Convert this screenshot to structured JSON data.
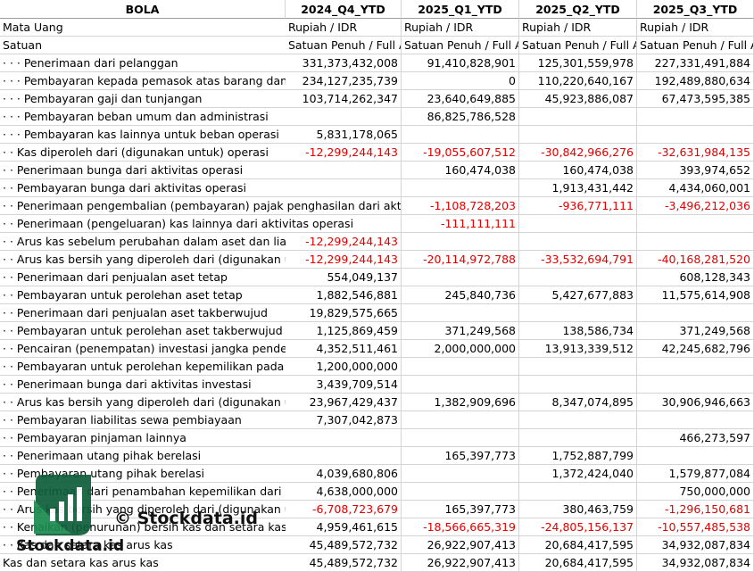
{
  "table": {
    "header": [
      "BOLA",
      "2024_Q4_YTD",
      "2025_Q1_YTD",
      "2025_Q2_YTD",
      "2025_Q3_YTD"
    ],
    "rows": [
      [
        "Mata Uang",
        "Rupiah / IDR",
        "Rupiah / IDR",
        "Rupiah / IDR",
        "Rupiah / IDR"
      ],
      [
        "Satuan",
        "Satuan Penuh / Full A",
        "Satuan Penuh / Full A",
        "Satuan Penuh / Full A",
        "Satuan Penuh / Full A"
      ],
      [
        "· · · Penerimaan dari pelanggan",
        "331,373,432,008",
        "91,410,828,901",
        "125,301,559,978",
        "227,331,491,884"
      ],
      [
        "· · · Pembayaran kepada pemasok atas barang dan ja",
        "234,127,235,739",
        "0",
        "110,220,640,167",
        "192,489,880,634"
      ],
      [
        "· · · Pembayaran gaji dan tunjangan",
        "103,714,262,347",
        "23,640,649,885",
        "45,923,886,087",
        "67,473,595,385"
      ],
      [
        "· · · Pembayaran beban umum dan administrasi",
        null,
        "86,825,786,528",
        null,
        null
      ],
      [
        "· · · Pembayaran kas lainnya untuk beban operasi",
        "5,831,178,065",
        null,
        null,
        null
      ],
      [
        "· · Kas diperoleh dari (digunakan untuk) operasi",
        "-12,299,244,143",
        "-19,055,607,512",
        "-30,842,966,276",
        "-32,631,984,135"
      ],
      [
        "· · Penerimaan bunga dari aktivitas operasi",
        null,
        "160,474,038",
        "160,474,038",
        "393,974,652"
      ],
      [
        "· · Pembayaran bunga dari aktivitas operasi",
        null,
        null,
        "1,913,431,442",
        "4,434,060,001"
      ],
      [
        "· · Penerimaan pengembalian (pembayaran) pajak penghasilan dari aktivi",
        null,
        "-1,108,728,203",
        "-936,771,111",
        "-3,496,212,036"
      ],
      [
        "· · Penerimaan (pengeluaran) kas lainnya dari aktivitas operasi",
        null,
        "-111,111,111",
        null,
        null
      ],
      [
        "· · Arus kas sebelum perubahan dalam aset dan liabi",
        "-12,299,244,143",
        null,
        null,
        null
      ],
      [
        "· · Arus kas bersih yang diperoleh dari (digunakan ur",
        "-12,299,244,143",
        "-20,114,972,788",
        "-33,532,694,791",
        "-40,168,281,520"
      ],
      [
        "· · Penerimaan dari penjualan aset tetap",
        "554,049,137",
        null,
        null,
        "608,128,343"
      ],
      [
        "· · Pembayaran untuk perolehan aset tetap",
        "1,882,546,881",
        "245,840,736",
        "5,427,677,883",
        "11,575,614,908"
      ],
      [
        "· · Penerimaan dari penjualan aset takberwujud",
        "19,829,575,665",
        null,
        null,
        null
      ],
      [
        "· · Pembayaran untuk perolehan aset takberwujud",
        "1,125,869,459",
        "371,249,568",
        "138,586,734",
        "371,249,568"
      ],
      [
        "· · Pencairan (penempatan) investasi jangka pendek",
        "4,352,511,461",
        "2,000,000,000",
        "13,913,339,512",
        "42,245,682,796"
      ],
      [
        "· · Pembayaran untuk perolehan kepemilikan pada e",
        "1,200,000,000",
        null,
        null,
        null
      ],
      [
        "· · Penerimaan bunga dari aktivitas investasi",
        "3,439,709,514",
        null,
        null,
        null
      ],
      [
        "· · Arus kas bersih yang diperoleh dari (digunakan ur",
        "23,967,429,437",
        "1,382,909,696",
        "8,347,074,895",
        "30,906,946,663"
      ],
      [
        "· · Pembayaran liabilitas sewa pembiayaan",
        "7,307,042,873",
        null,
        null,
        null
      ],
      [
        "· · Pembayaran pinjaman lainnya",
        null,
        null,
        null,
        "466,273,597"
      ],
      [
        "· · Penerimaan utang pihak berelasi",
        null,
        "165,397,773",
        "1,752,887,799",
        null
      ],
      [
        "· · Pembayaran utang pihak berelasi",
        "4,039,680,806",
        null,
        "1,372,424,040",
        "1,579,877,084"
      ],
      [
        "· · Penerimaan dari penambahan kepemilikan dari n",
        "4,638,000,000",
        null,
        null,
        "750,000,000"
      ],
      [
        "· · Arus kas bersih yang diperoleh dari (digunakan ur",
        "-6,708,723,679",
        "165,397,773",
        "380,463,759",
        "-1,296,150,681"
      ],
      [
        "· · Kenaikan (penurunan) bersih kas dan setara kas",
        "4,959,461,615",
        "-18,566,665,319",
        "-24,805,156,137",
        "-10,557,485,538"
      ],
      [
        "· · Kas dan setara kas arus kas",
        "45,489,572,732",
        "26,922,907,413",
        "20,684,417,595",
        "34,932,087,834"
      ],
      [
        "Kas dan setara kas arus kas",
        "45,489,572,732",
        "26,922,907,413",
        "20,684,417,595",
        "34,932,087,834"
      ]
    ]
  },
  "watermark": {
    "caption": "© Stockdata.id",
    "brand": "Stockdata.id"
  }
}
